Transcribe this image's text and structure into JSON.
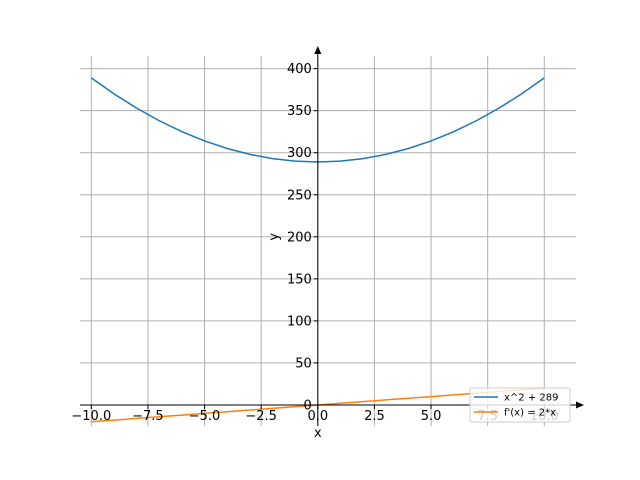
{
  "chart_data": {
    "type": "line",
    "title": "",
    "xlabel": "x",
    "ylabel": "y",
    "xlim": [
      -10.5,
      11.4
    ],
    "ylim": [
      -25,
      415
    ],
    "grid": true,
    "legend_placement": "lower-right",
    "x_ticks": [
      -10.0,
      -7.5,
      -5.0,
      -2.5,
      0.0,
      2.5,
      5.0,
      7.5,
      10.0
    ],
    "x_tick_labels": [
      "−10.0",
      "−7.5",
      "−5.0",
      "−2.5",
      "0.0",
      "2.5",
      "5.0",
      "7.5",
      "10.0"
    ],
    "y_ticks": [
      0,
      50,
      100,
      150,
      200,
      250,
      300,
      350,
      400
    ],
    "y_tick_labels": [
      "0",
      "50",
      "100",
      "150",
      "200",
      "250",
      "300",
      "350",
      "400"
    ],
    "series": [
      {
        "name": "x^2 + 289",
        "color": "#1f77b4",
        "x": [
          -10,
          -9,
          -8,
          -7,
          -6,
          -5,
          -4,
          -3,
          -2,
          -1,
          0,
          1,
          2,
          3,
          4,
          5,
          6,
          7,
          8,
          9,
          10
        ],
        "y": [
          389,
          370,
          353,
          338,
          325,
          314,
          305,
          298,
          293,
          290,
          289,
          290,
          293,
          298,
          305,
          314,
          325,
          338,
          353,
          370,
          389
        ]
      },
      {
        "name": "f'(x) = 2*x",
        "color": "#ff7f0e",
        "x": [
          -10,
          -9,
          -8,
          -7,
          -6,
          -5,
          -4,
          -3,
          -2,
          -1,
          0,
          1,
          2,
          3,
          4,
          5,
          6,
          7,
          8,
          9,
          10
        ],
        "y": [
          -20,
          -18,
          -16,
          -14,
          -12,
          -10,
          -8,
          -6,
          -4,
          -2,
          0,
          2,
          4,
          6,
          8,
          10,
          12,
          14,
          16,
          18,
          20
        ]
      }
    ]
  }
}
